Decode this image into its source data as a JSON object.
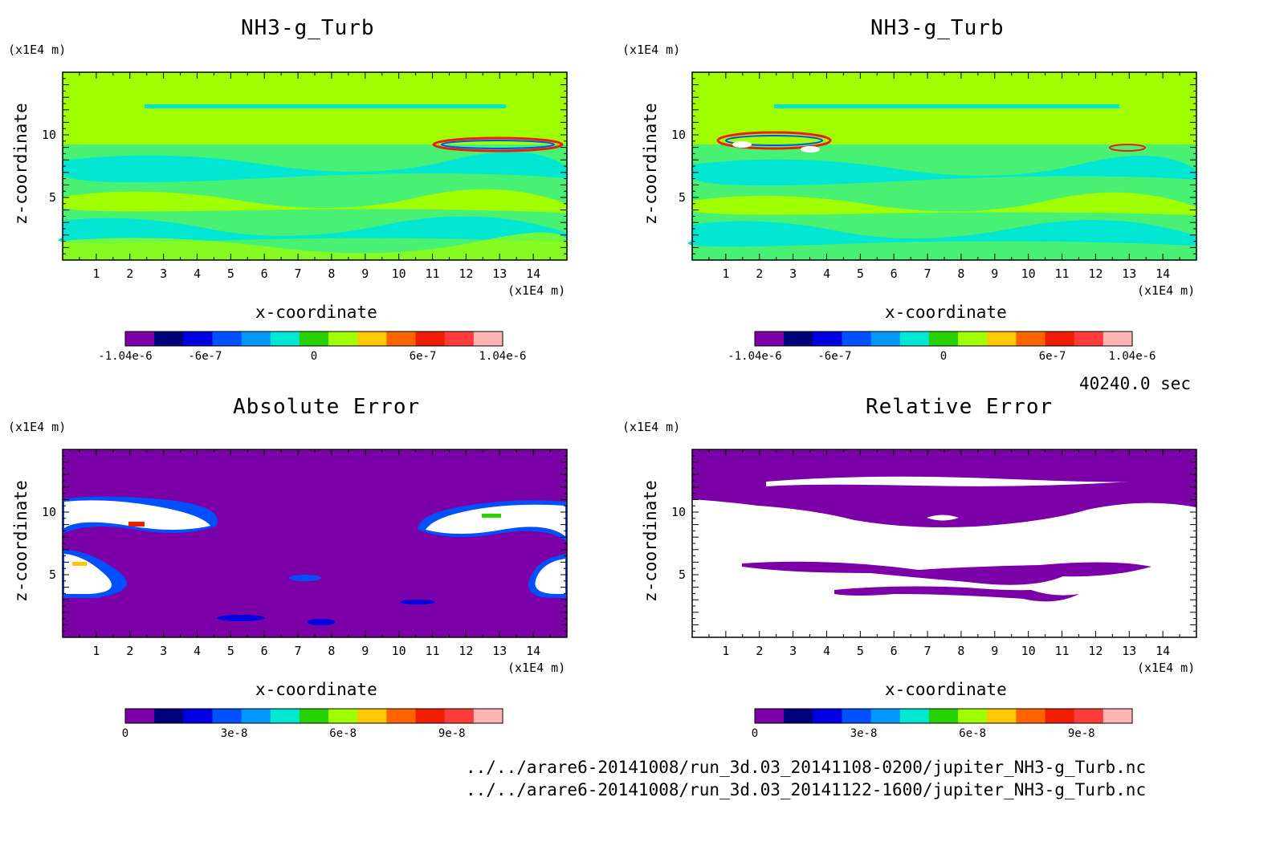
{
  "figure": {
    "time_label": "40240.0 sec",
    "files": [
      "../../arare6-20141008/run_3d.03_20141108-0200/jupiter_NH3-g_Turb.nc",
      "../../arare6-20141008/run_3d.03_20141122-1600/jupiter_NH3-g_Turb.nc"
    ]
  },
  "colors": {
    "palette": [
      "#7b00a8",
      "#00007c",
      "#0000e0",
      "#0050ff",
      "#0096ff",
      "#00e6d2",
      "#28d200",
      "#a0ff00",
      "#ffc800",
      "#ff6400",
      "#f01e00",
      "#ff3c3c",
      "#ffb4b4"
    ],
    "background": "#ffffff"
  },
  "chart_data": [
    {
      "type": "heatmap",
      "title": "NH3-g_Turb",
      "xlabel": "x-coordinate",
      "ylabel": "z-coordinate",
      "x_unit": "(x1E4 m)",
      "y_unit": "(x1E4 m)",
      "xlim": [
        0,
        15
      ],
      "ylim": [
        0,
        15
      ],
      "x_ticks": [
        1,
        2,
        3,
        4,
        5,
        6,
        7,
        8,
        9,
        10,
        11,
        12,
        13,
        14
      ],
      "y_ticks": [
        5,
        10
      ],
      "colorbar": {
        "min": -1.04e-06,
        "max": 1.04e-06,
        "tick_labels": [
          "-1.04e-6",
          "-6e-7",
          "0",
          "6e-7",
          "1.04e-6"
        ],
        "tick_values": [
          -1.04e-06,
          -6e-07,
          0,
          6e-07,
          1.04e-06
        ]
      }
    },
    {
      "type": "heatmap",
      "title": "NH3-g_Turb",
      "xlabel": "x-coordinate",
      "ylabel": "z-coordinate",
      "x_unit": "(x1E4 m)",
      "y_unit": "(x1E4 m)",
      "xlim": [
        0,
        15
      ],
      "ylim": [
        0,
        15
      ],
      "x_ticks": [
        1,
        2,
        3,
        4,
        5,
        6,
        7,
        8,
        9,
        10,
        11,
        12,
        13,
        14
      ],
      "y_ticks": [
        5,
        10
      ],
      "colorbar": {
        "min": -1.04e-06,
        "max": 1.04e-06,
        "tick_labels": [
          "-1.04e-6",
          "-6e-7",
          "0",
          "6e-7",
          "1.04e-6"
        ],
        "tick_values": [
          -1.04e-06,
          -6e-07,
          0,
          6e-07,
          1.04e-06
        ]
      }
    },
    {
      "type": "heatmap",
      "title": "Absolute Error",
      "xlabel": "x-coordinate",
      "ylabel": "z-coordinate",
      "x_unit": "(x1E4 m)",
      "y_unit": "(x1E4 m)",
      "xlim": [
        0,
        15
      ],
      "ylim": [
        0,
        15
      ],
      "x_ticks": [
        1,
        2,
        3,
        4,
        5,
        6,
        7,
        8,
        9,
        10,
        11,
        12,
        13,
        14
      ],
      "y_ticks": [
        5,
        10
      ],
      "colorbar": {
        "min": 0,
        "max": 1.04e-07,
        "tick_labels": [
          "0",
          "3e-8",
          "6e-8",
          "9e-8"
        ],
        "tick_values": [
          0,
          3e-08,
          6e-08,
          9e-08
        ]
      }
    },
    {
      "type": "heatmap",
      "title": "Relative Error",
      "xlabel": "x-coordinate",
      "ylabel": "z-coordinate",
      "x_unit": "(x1E4 m)",
      "y_unit": "(x1E4 m)",
      "xlim": [
        0,
        15
      ],
      "ylim": [
        0,
        15
      ],
      "x_ticks": [
        1,
        2,
        3,
        4,
        5,
        6,
        7,
        8,
        9,
        10,
        11,
        12,
        13,
        14
      ],
      "y_ticks": [
        5,
        10
      ],
      "colorbar": {
        "min": 0,
        "max": 1.04e-07,
        "tick_labels": [
          "0",
          "3e-8",
          "6e-8",
          "9e-8"
        ],
        "tick_values": [
          0,
          3e-08,
          6e-08,
          9e-08
        ]
      }
    }
  ]
}
